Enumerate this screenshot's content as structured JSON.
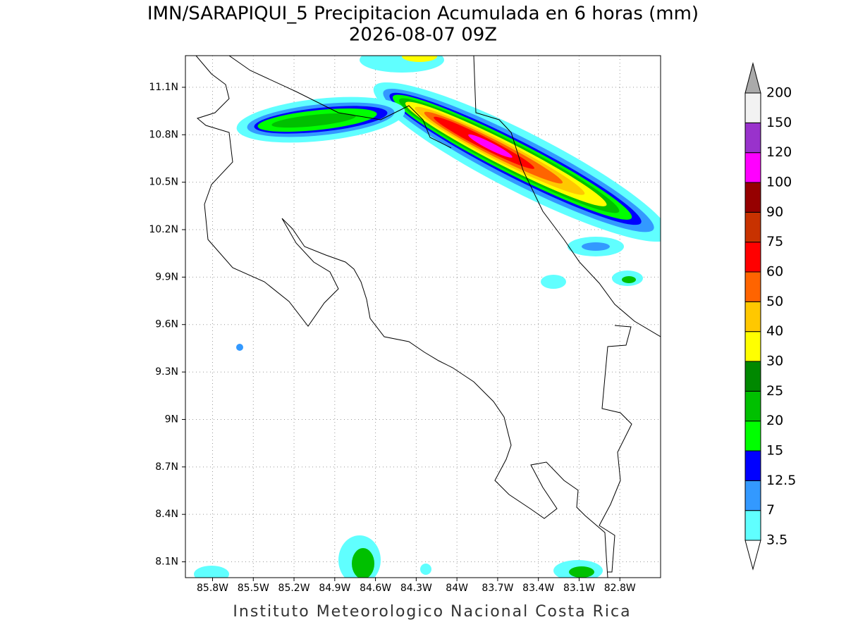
{
  "chart_data": {
    "type": "map",
    "title": "IMN/SARAPIQUI_5 Precipitacion Acumulada en 6 horas (mm)",
    "subtitle": "2026-08-07 09Z",
    "footer": "Instituto Meteorologico Nacional Costa Rica",
    "xlim": [
      -86.0,
      -82.5
    ],
    "ylim": [
      8.0,
      11.3
    ],
    "xticks": [
      {
        "value": -85.8,
        "label": "85.8W"
      },
      {
        "value": -85.5,
        "label": "85.5W"
      },
      {
        "value": -85.2,
        "label": "85.2W"
      },
      {
        "value": -84.9,
        "label": "84.9W"
      },
      {
        "value": -84.6,
        "label": "84.6W"
      },
      {
        "value": -84.3,
        "label": "84.3W"
      },
      {
        "value": -84.0,
        "label": "84W"
      },
      {
        "value": -83.7,
        "label": "83.7W"
      },
      {
        "value": -83.4,
        "label": "83.4W"
      },
      {
        "value": -83.1,
        "label": "83.1W"
      },
      {
        "value": -82.8,
        "label": "82.8W"
      }
    ],
    "yticks": [
      {
        "value": 8.1,
        "label": "8.1N"
      },
      {
        "value": 8.4,
        "label": "8.4N"
      },
      {
        "value": 8.7,
        "label": "8.7N"
      },
      {
        "value": 9.0,
        "label": "9N"
      },
      {
        "value": 9.3,
        "label": "9.3N"
      },
      {
        "value": 9.6,
        "label": "9.6N"
      },
      {
        "value": 9.9,
        "label": "9.9N"
      },
      {
        "value": 10.2,
        "label": "10.2N"
      },
      {
        "value": 10.5,
        "label": "10.5N"
      },
      {
        "value": 10.8,
        "label": "10.8N"
      },
      {
        "value": 11.1,
        "label": "11.1N"
      }
    ],
    "grid": true,
    "colorbar": {
      "levels": [
        3.5,
        7,
        12.5,
        15,
        20,
        25,
        30,
        40,
        50,
        60,
        75,
        90,
        100,
        120,
        150,
        200
      ],
      "colors": [
        "#60ffff",
        "#3399ff",
        "#0000ff",
        "#00ff00",
        "#00c000",
        "#008800",
        "#ffff00",
        "#ffc800",
        "#ff6400",
        "#ff0000",
        "#c83200",
        "#960000",
        "#ff00ff",
        "#9932cc",
        "#f2f2f2"
      ],
      "under_color": "#ffffff",
      "over_color": "#aaaaaa"
    }
  }
}
